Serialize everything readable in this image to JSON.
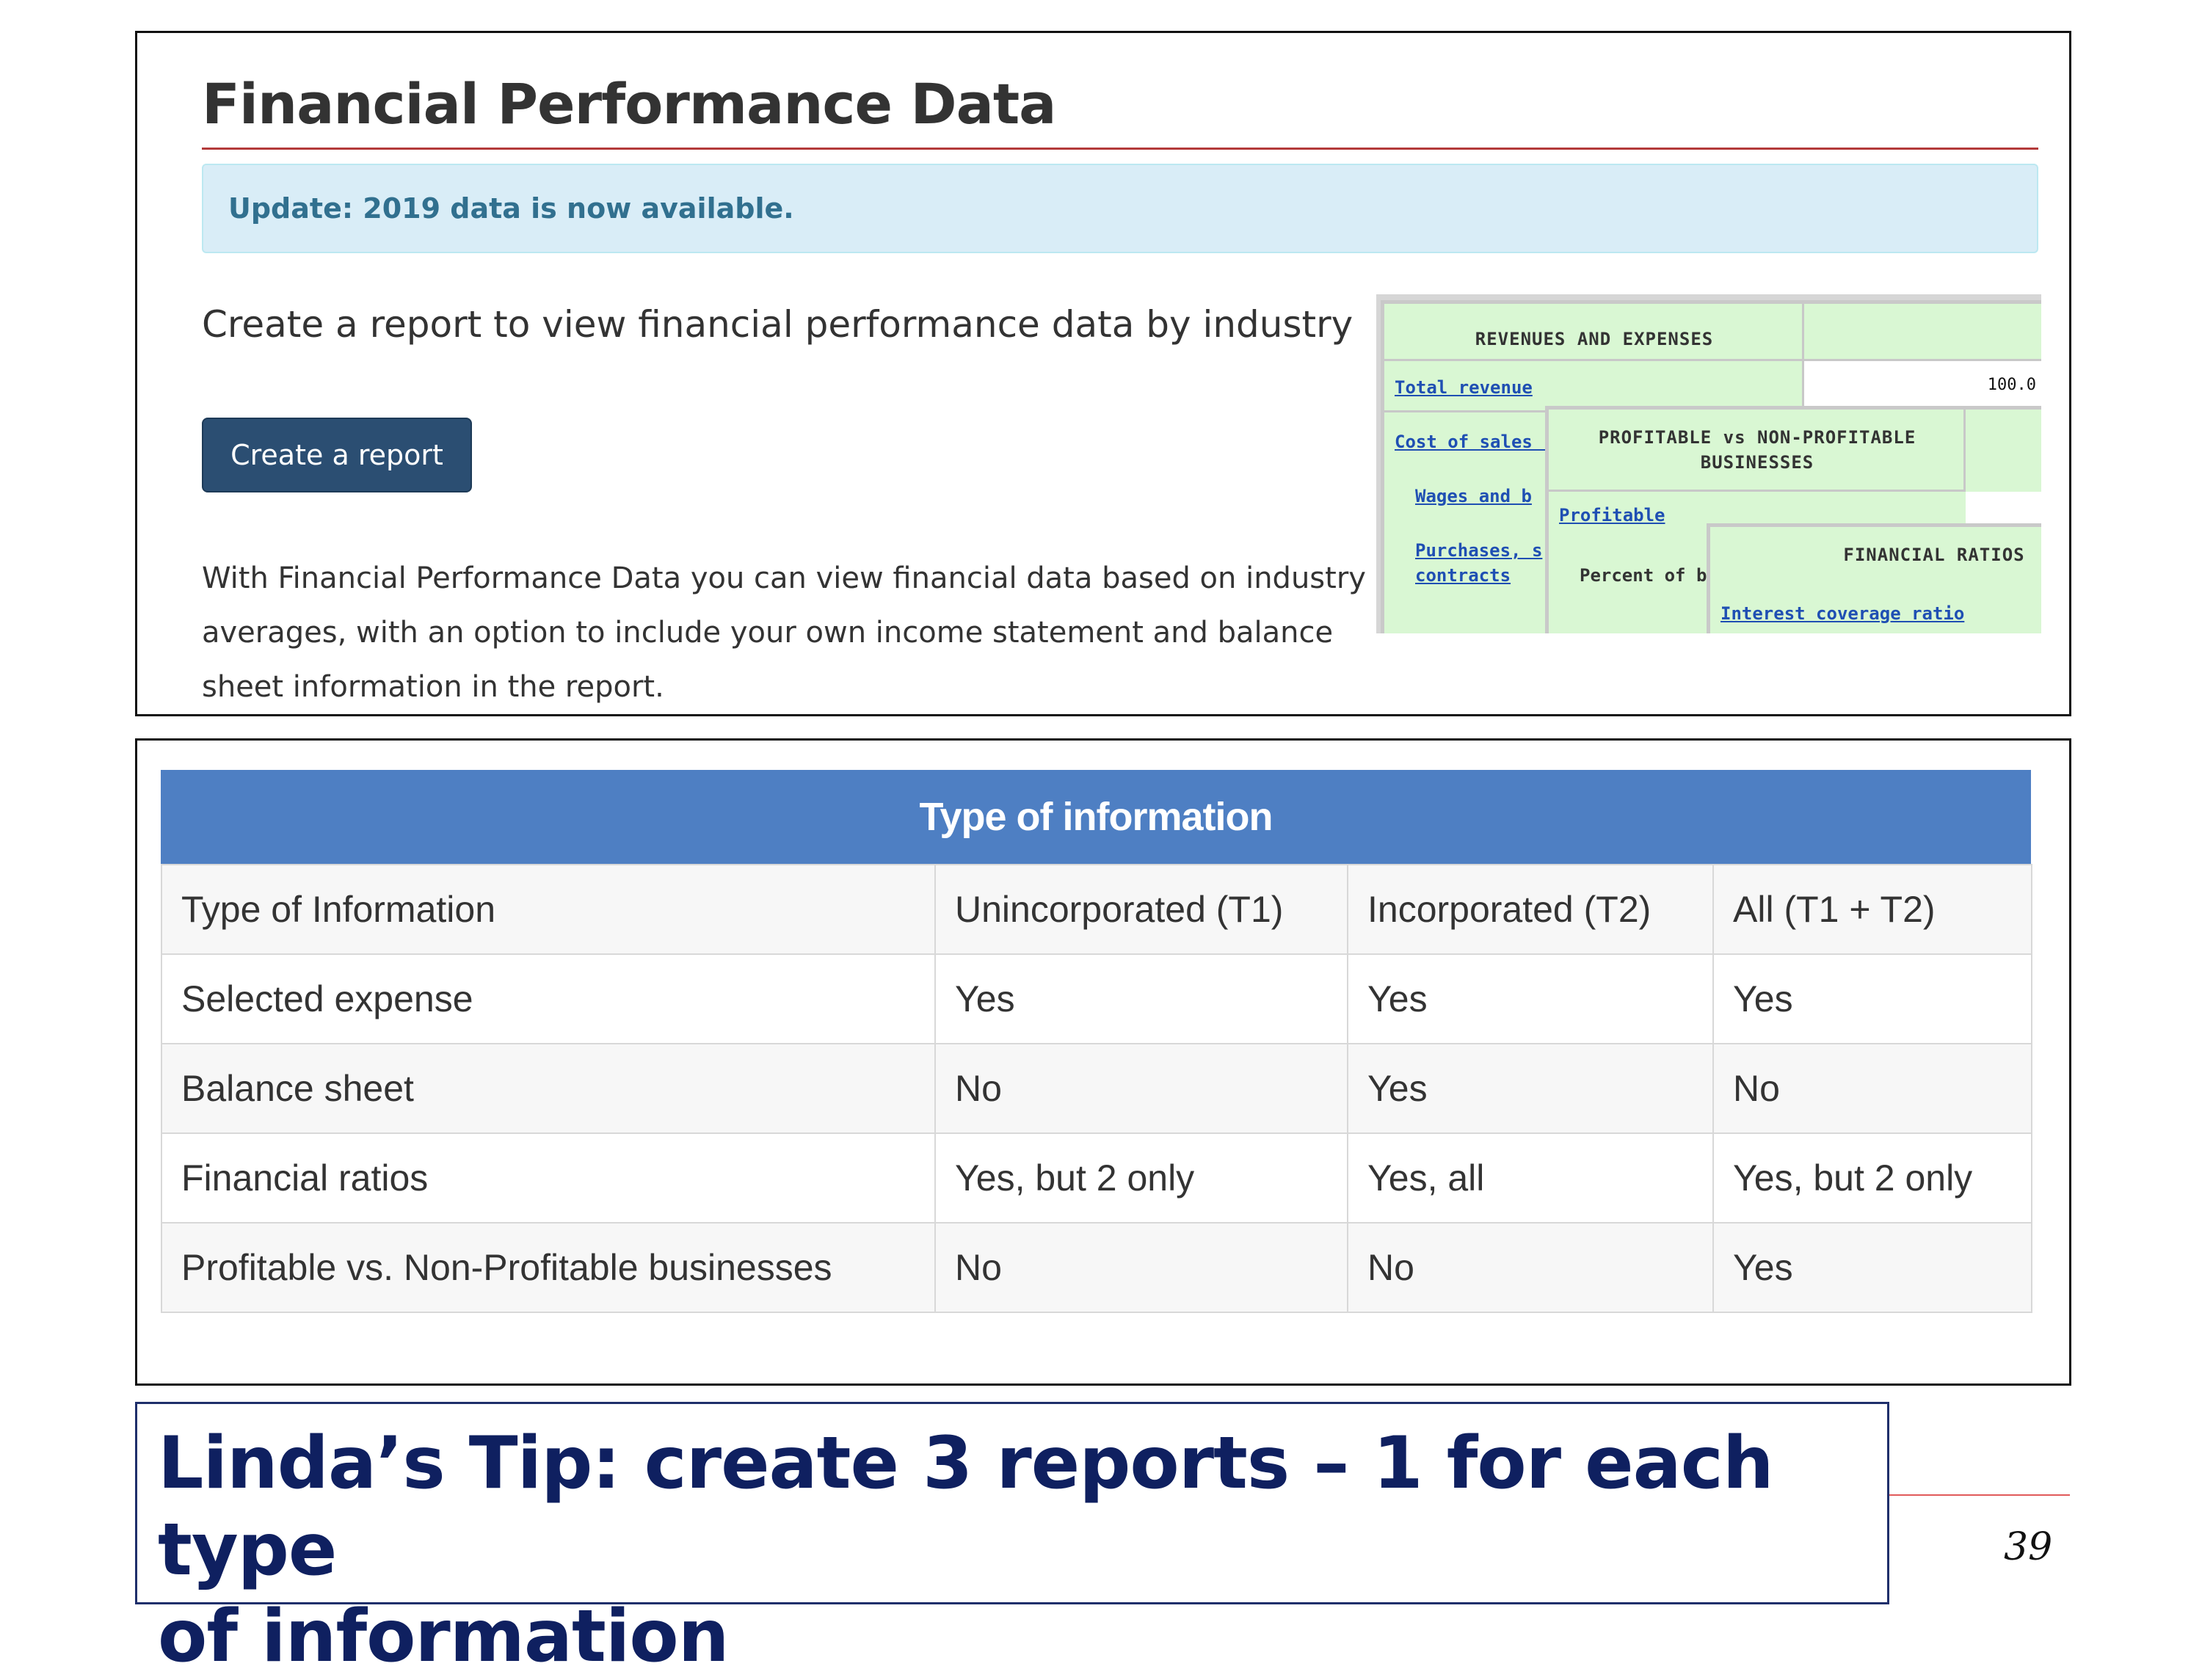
{
  "top_panel": {
    "title": "Financial Performance Data",
    "alert": "Update: 2019 data is now available.",
    "subheading": "Create a report to view financial performance data by industry",
    "create_button": "Create a report",
    "description": "With Financial Performance Data you can view financial data based on industry averages, with an option to include your own income statement and balance sheet information in the report."
  },
  "preview": {
    "card1": {
      "header": "REVENUES AND EXPENSES",
      "total_revenue": "Total revenue",
      "total_revenue_value": "100.0",
      "cost_of_sales": "Cost of sales (",
      "wages": "Wages and b",
      "purchases": "Purchases, s",
      "contracts": "contracts"
    },
    "card2": {
      "header_line1": "PROFITABLE vs NON-PROFITABLE",
      "header_line2": "BUSINESSES",
      "profitable": "Profitable",
      "percent_of": "Percent of b"
    },
    "card3": {
      "header": "FINANCIAL RATIOS",
      "interest_coverage": "Interest coverage ratio"
    }
  },
  "table": {
    "caption": "Type of information",
    "rows": [
      [
        "Type of Information",
        "Unincorporated (T1)",
        "Incorporated (T2)",
        "All (T1 + T2)"
      ],
      [
        "Selected expense",
        "Yes",
        "Yes",
        "Yes"
      ],
      [
        "Balance sheet",
        "No",
        "Yes",
        "No"
      ],
      [
        "Financial ratios",
        "Yes, but 2 only",
        "Yes, all",
        "Yes, but 2 only"
      ],
      [
        "Profitable vs. Non-Profitable businesses",
        "No",
        "No",
        "Yes"
      ]
    ]
  },
  "tip": {
    "line1": "Linda’s Tip: create 3 reports – 1 for each type",
    "line2": "of information"
  },
  "page_number": "39"
}
